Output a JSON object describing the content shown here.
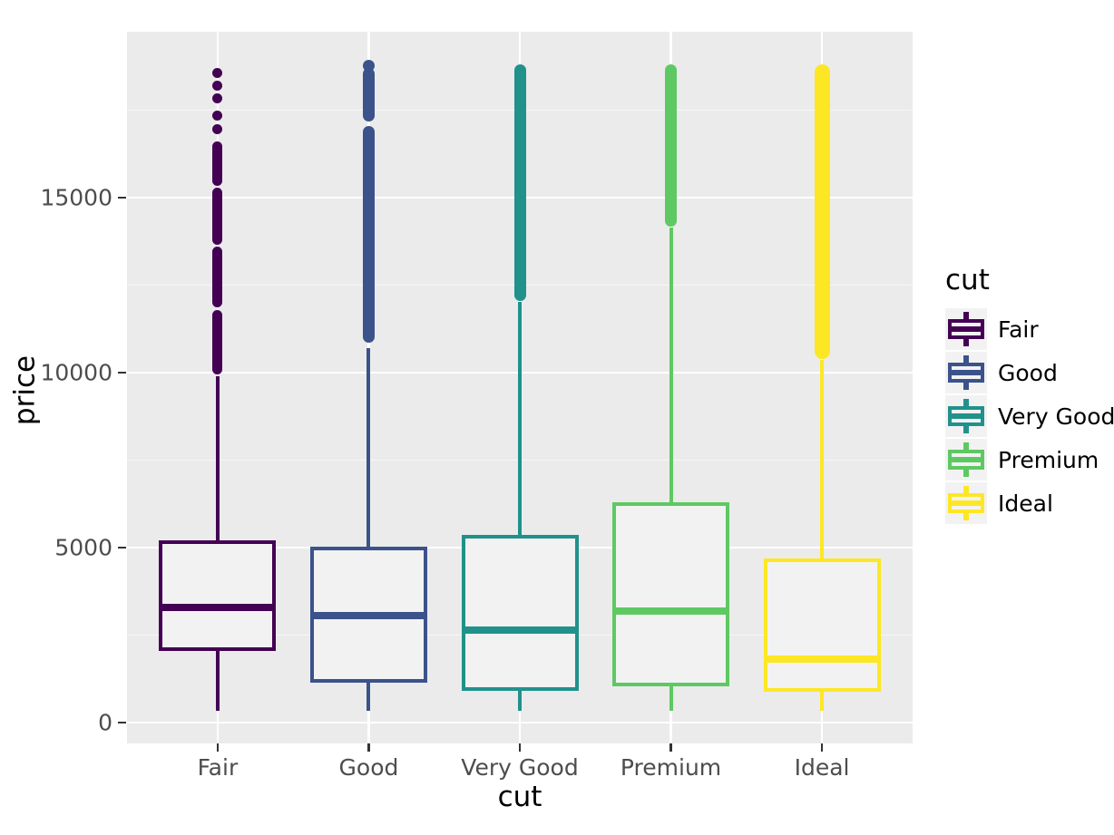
{
  "chart_data": {
    "type": "boxplot",
    "title": "",
    "xlabel": "cut",
    "ylabel": "price",
    "categories": [
      "Fair",
      "Good",
      "Very Good",
      "Premium",
      "Ideal"
    ],
    "y_ticks": [
      0,
      5000,
      10000,
      15000
    ],
    "y_minor_ticks": [
      2500,
      7500,
      12500,
      17500
    ],
    "ylim": [
      -599,
      19748
    ],
    "data_range": [
      326,
      18823
    ],
    "grid": "on",
    "legend_position": "right",
    "series": [
      {
        "name": "Fair",
        "color": "#440154",
        "whisker_low": 337,
        "q1": 2050,
        "median": 3282,
        "q3": 5205,
        "whisker_high": 9899,
        "outlier_runs": [
          [
            9950,
            11800
          ],
          [
            11870,
            13600
          ],
          [
            13660,
            15280
          ],
          [
            15340,
            16600
          ]
        ],
        "outlier_points": [
          16950,
          17350,
          17850,
          18200,
          18574
        ],
        "outlier_size": 11
      },
      {
        "name": "Good",
        "color": "#3B528B",
        "whisker_low": 327,
        "q1": 1145,
        "median": 3050,
        "q3": 5028,
        "whisker_high": 10700,
        "outlier_runs": [
          [
            10870,
            17050
          ],
          [
            17180,
            18700
          ]
        ],
        "outlier_points": [
          18788
        ],
        "outlier_size": 13
      },
      {
        "name": "Very Good",
        "color": "#21918C",
        "whisker_low": 336,
        "q1": 912,
        "median": 2648,
        "q3": 5373,
        "whisker_high": 12030,
        "outlier_runs": [
          [
            12060,
            18818
          ]
        ],
        "outlier_points": [],
        "outlier_size": 13
      },
      {
        "name": "Premium",
        "color": "#5EC962",
        "whisker_low": 326,
        "q1": 1046,
        "median": 3185,
        "q3": 6296,
        "whisker_high": 14140,
        "outlier_runs": [
          [
            14170,
            18823
          ]
        ],
        "outlier_points": [],
        "outlier_size": 13
      },
      {
        "name": "Ideal",
        "color": "#FDE725",
        "whisker_low": 326,
        "q1": 878,
        "median": 1810,
        "q3": 4678,
        "whisker_high": 10360,
        "outlier_runs": [
          [
            10380,
            18806
          ]
        ],
        "outlier_points": [],
        "outlier_size": 17
      }
    ],
    "legend": {
      "title": "cut",
      "items": [
        {
          "label": "Fair",
          "color": "#440154"
        },
        {
          "label": "Good",
          "color": "#3B528B"
        },
        {
          "label": "Very Good",
          "color": "#21918C"
        },
        {
          "label": "Premium",
          "color": "#5EC962"
        },
        {
          "label": "Ideal",
          "color": "#FDE725"
        }
      ]
    },
    "theme": {
      "panel_bg": "#EBEBEB",
      "grid_major": "#FFFFFF",
      "grid_minor": "#F7F7F7",
      "box_fill": "#F2F2F2",
      "tick_label_color": "#4D4D4D",
      "axis_title_color": "#000000",
      "tick_mark_color": "#333333",
      "legend_key_bg": "#F2F2F2"
    }
  }
}
